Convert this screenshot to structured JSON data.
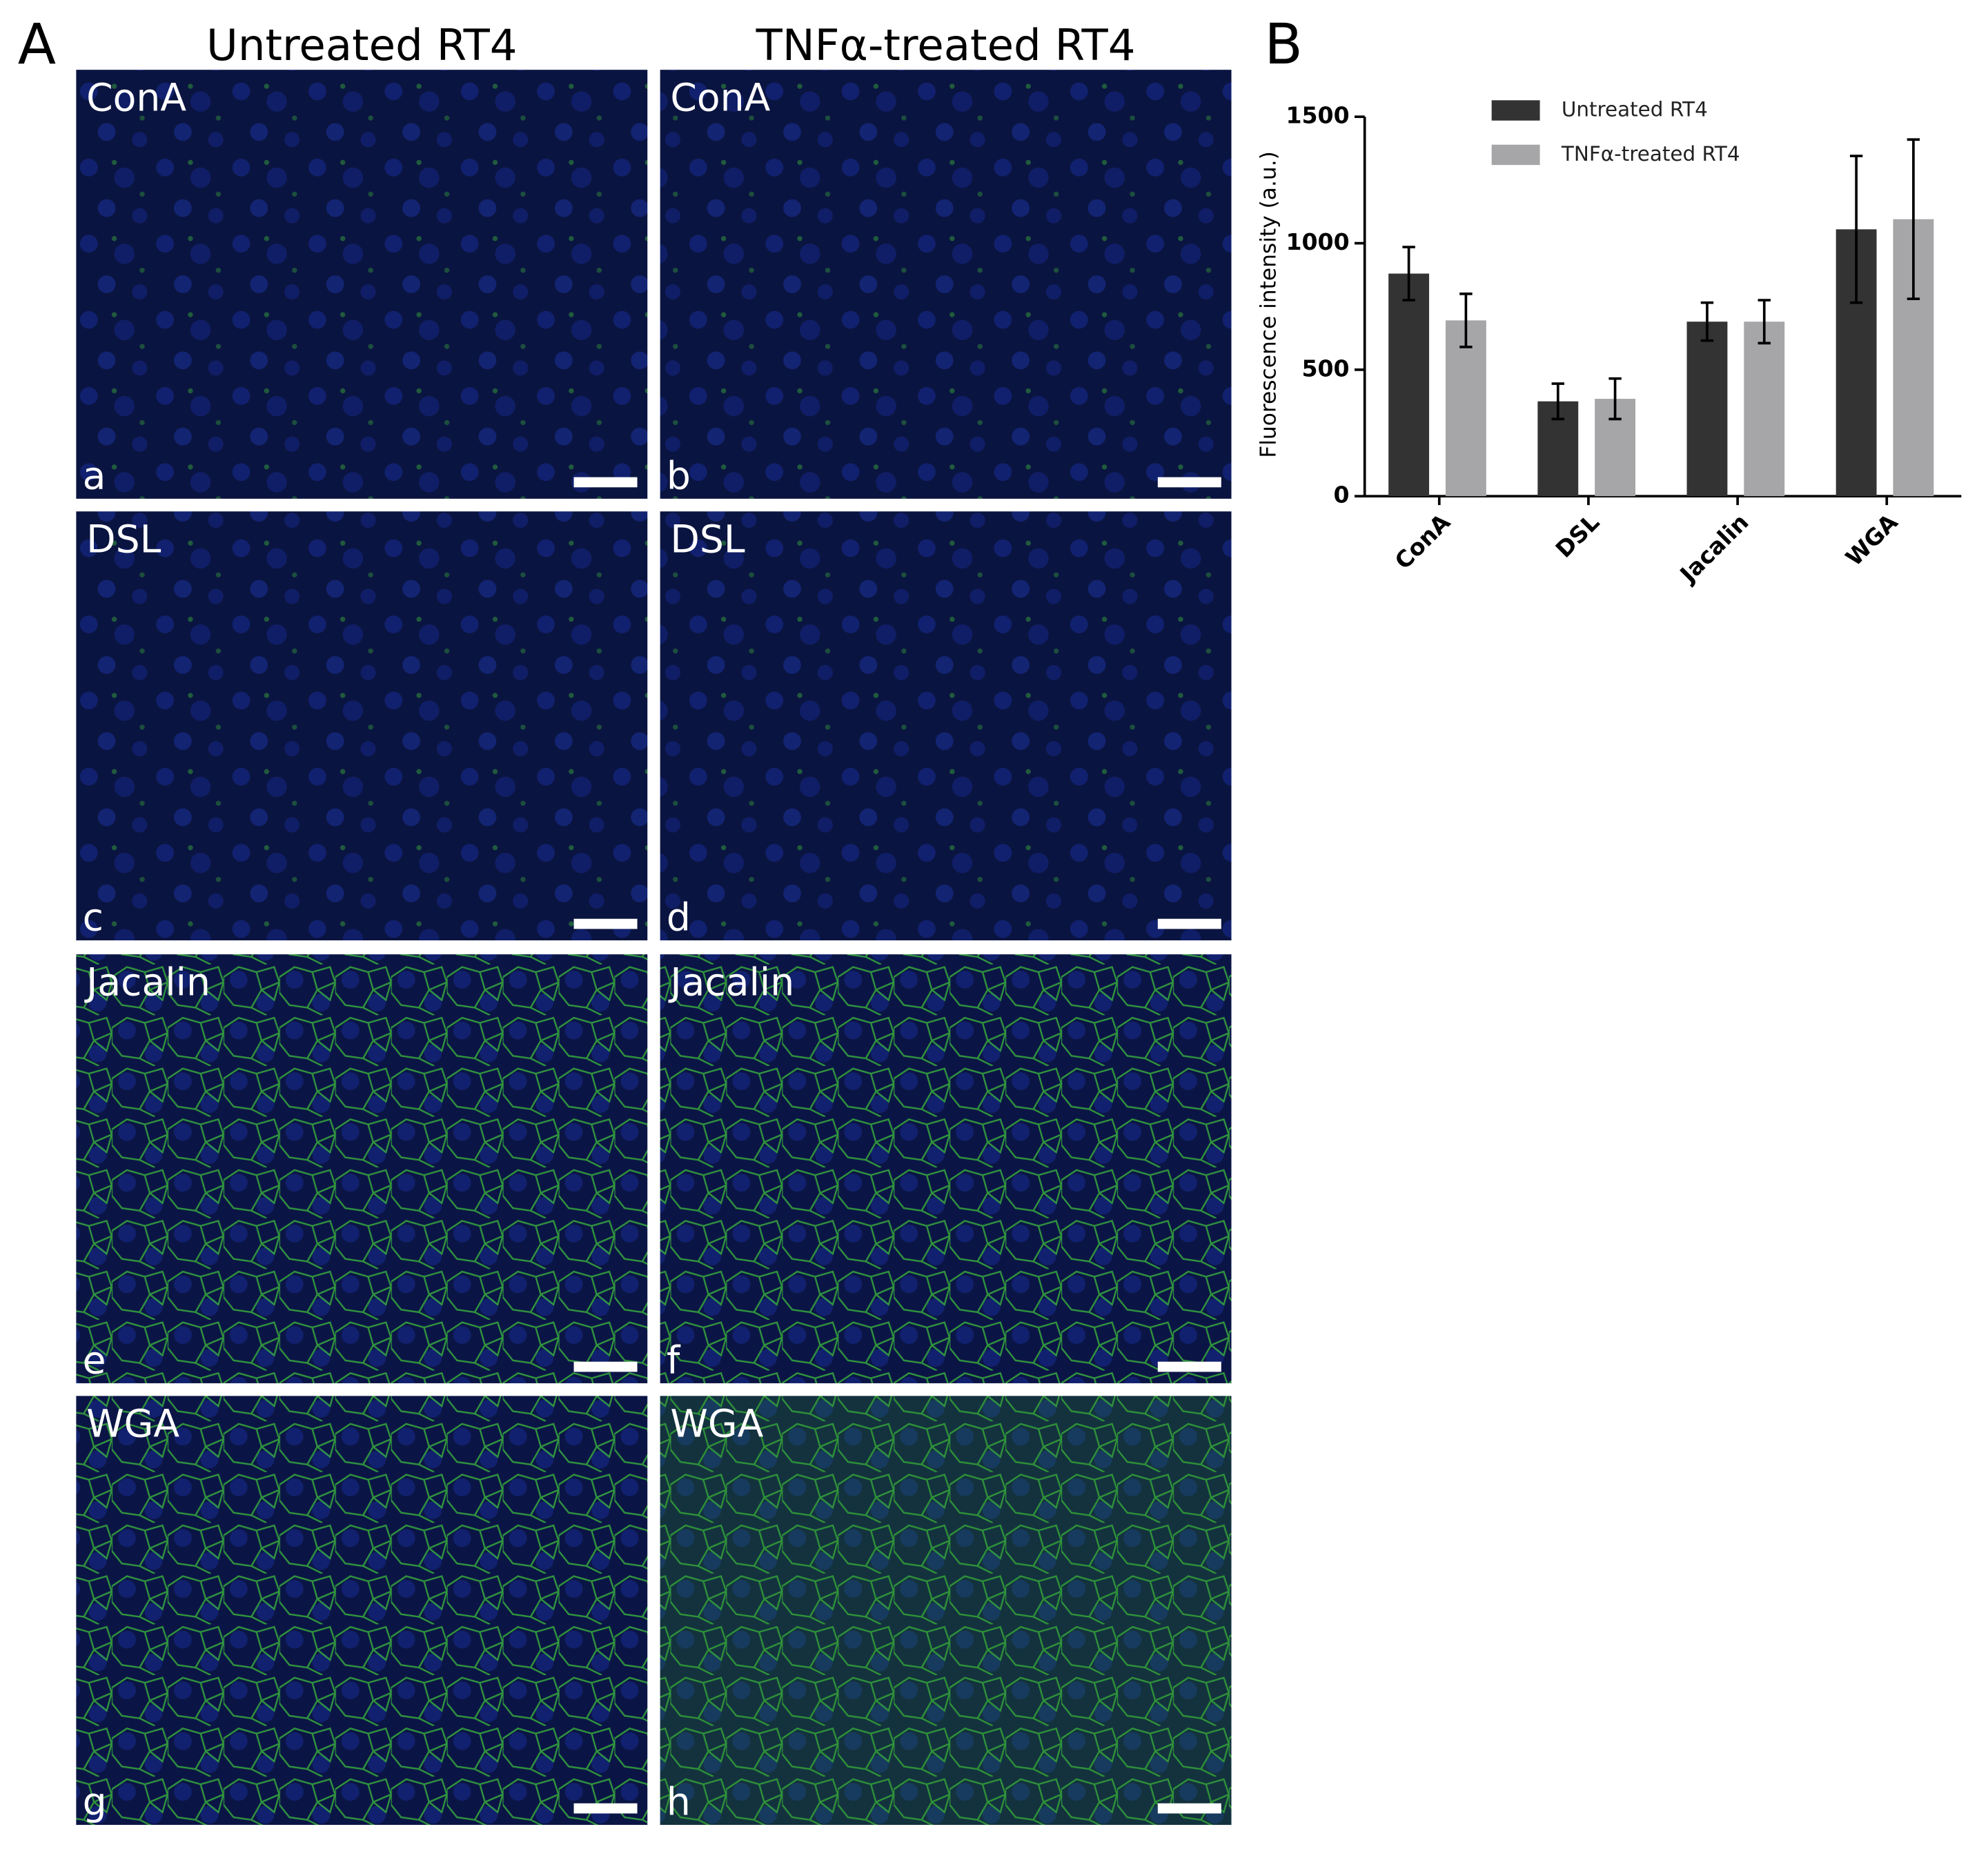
{
  "figure": {
    "panel_a_label": "A",
    "panel_b_label": "B",
    "column_titles": [
      "Untreated RT4",
      "TNFα-treated RT4"
    ],
    "panels": [
      {
        "stain": "ConA",
        "letter": "a"
      },
      {
        "stain": "ConA",
        "letter": "b"
      },
      {
        "stain": "DSL",
        "letter": "c"
      },
      {
        "stain": "DSL",
        "letter": "d"
      },
      {
        "stain": "Jacalin",
        "letter": "e"
      },
      {
        "stain": "Jacalin",
        "letter": "f"
      },
      {
        "stain": "WGA",
        "letter": "g"
      },
      {
        "stain": "WGA",
        "letter": "h"
      }
    ]
  },
  "chart_data": {
    "type": "bar",
    "y_label": "Fluorescence intensity (a.u.)",
    "categories": [
      "ConA",
      "DSL",
      "Jacalin",
      "WGA"
    ],
    "series": [
      {
        "name": "Untreated RT4",
        "color": "#333333",
        "values": [
          880,
          375,
          690,
          1055
        ],
        "errors": [
          105,
          70,
          75,
          290
        ]
      },
      {
        "name": "TNFα-treated RT4",
        "color": "#a6a6a8",
        "values": [
          695,
          385,
          690,
          1095
        ],
        "errors": [
          105,
          80,
          85,
          315
        ]
      }
    ],
    "ylim": [
      0,
      1500
    ],
    "yticks": [
      0,
      500,
      1000,
      1500
    ],
    "grid": false
  }
}
